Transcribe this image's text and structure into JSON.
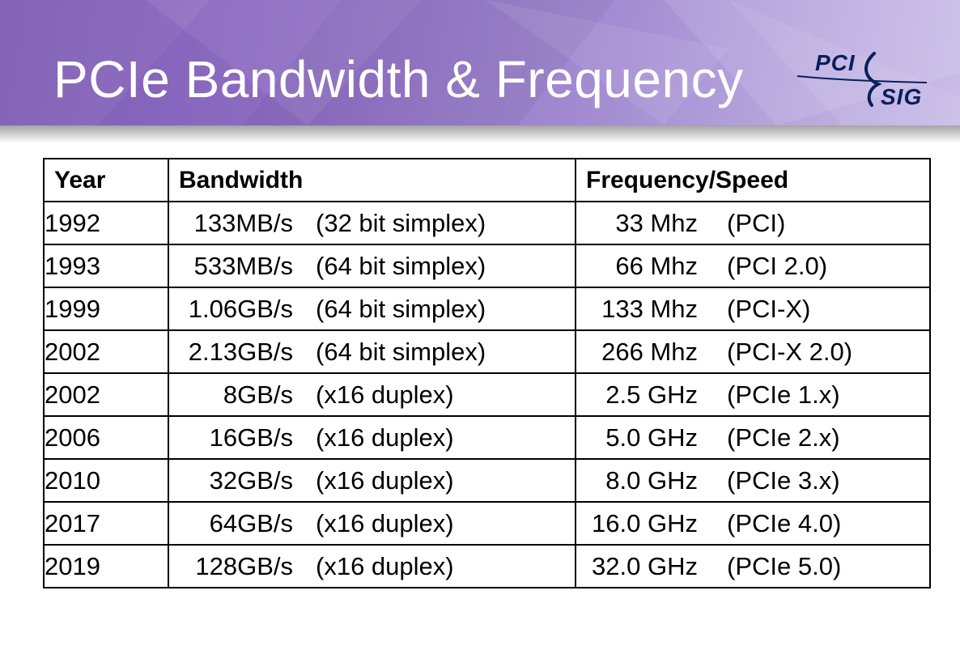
{
  "header": {
    "title": "PCIe Bandwidth & Frequency",
    "logo": {
      "top": "PCI",
      "bottom": "SIG",
      "text_color": "#0a1f5c"
    },
    "banner_colors": [
      "#7e5bb4",
      "#a58fd3",
      "#c9bde8"
    ]
  },
  "table": {
    "columns": [
      "Year",
      "Bandwidth",
      "Frequency/Speed"
    ],
    "rows": [
      {
        "year": "1992",
        "bandwidth": "133MB/s",
        "bandwidth_note": "(32 bit simplex)",
        "frequency": "33 Mhz",
        "frequency_note": "(PCI)"
      },
      {
        "year": "1993",
        "bandwidth": "533MB/s",
        "bandwidth_note": "(64 bit simplex)",
        "frequency": "66 Mhz",
        "frequency_note": "(PCI 2.0)"
      },
      {
        "year": "1999",
        "bandwidth": "1.06GB/s",
        "bandwidth_note": "(64 bit simplex)",
        "frequency": "133 Mhz",
        "frequency_note": "(PCI-X)"
      },
      {
        "year": "2002",
        "bandwidth": "2.13GB/s",
        "bandwidth_note": "(64 bit simplex)",
        "frequency": "266 Mhz",
        "frequency_note": "(PCI-X 2.0)"
      },
      {
        "year": "2002",
        "bandwidth": "8GB/s",
        "bandwidth_note": "(x16 duplex)",
        "frequency": "2.5 GHz",
        "frequency_note": "(PCIe 1.x)"
      },
      {
        "year": "2006",
        "bandwidth": "16GB/s",
        "bandwidth_note": "(x16 duplex)",
        "frequency": "5.0 GHz",
        "frequency_note": "(PCIe 2.x)"
      },
      {
        "year": "2010",
        "bandwidth": "32GB/s",
        "bandwidth_note": "(x16 duplex)",
        "frequency": "8.0 GHz",
        "frequency_note": "(PCIe 3.x)"
      },
      {
        "year": "2017",
        "bandwidth": "64GB/s",
        "bandwidth_note": "(x16 duplex)",
        "frequency": "16.0 GHz",
        "frequency_note": "(PCIe 4.0)"
      },
      {
        "year": "2019",
        "bandwidth": "128GB/s",
        "bandwidth_note": "(x16 duplex)",
        "frequency": "32.0 GHz",
        "frequency_note": "(PCIe 5.0)"
      }
    ]
  }
}
